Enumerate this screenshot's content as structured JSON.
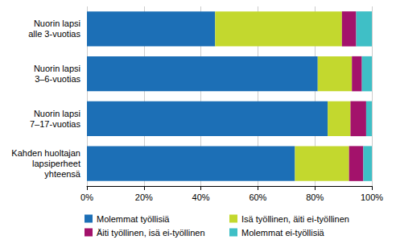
{
  "chart_data": {
    "type": "bar",
    "orientation": "horizontal",
    "stacked": true,
    "categories": [
      "Nuorin lapsi\nalle 3-vuotias",
      "Nuorin lapsi\n3–6-vuotias",
      "Nuorin lapsi\n7–17-vuotias",
      "Kahden huoltajan\nlapsiperheet\nyhteensä"
    ],
    "series": [
      {
        "name": "Molemmat työllisiä",
        "color": "#1c6fb6",
        "values": [
          45,
          81,
          84.5,
          73
        ]
      },
      {
        "name": "Isä työllinen, äiti ei-työllinen",
        "color": "#c3d82e",
        "values": [
          44.5,
          12,
          8,
          19
        ]
      },
      {
        "name": "Äiti työllinen, isä ei-työllinen",
        "color": "#a3126b",
        "values": [
          5,
          3.5,
          5.5,
          5
        ]
      },
      {
        "name": "Molemmat ei-työllisiä",
        "color": "#3fbfc6",
        "values": [
          5.5,
          3.5,
          2,
          3
        ]
      }
    ],
    "xlim": [
      0,
      100
    ],
    "xticks": [
      {
        "value": 0,
        "label": "0%"
      },
      {
        "value": 20,
        "label": "20%"
      },
      {
        "value": 40,
        "label": "40%"
      },
      {
        "value": 60,
        "label": "60%"
      },
      {
        "value": 80,
        "label": "80%"
      },
      {
        "value": 100,
        "label": "100%"
      }
    ],
    "grid": true,
    "legend": "bottom"
  }
}
